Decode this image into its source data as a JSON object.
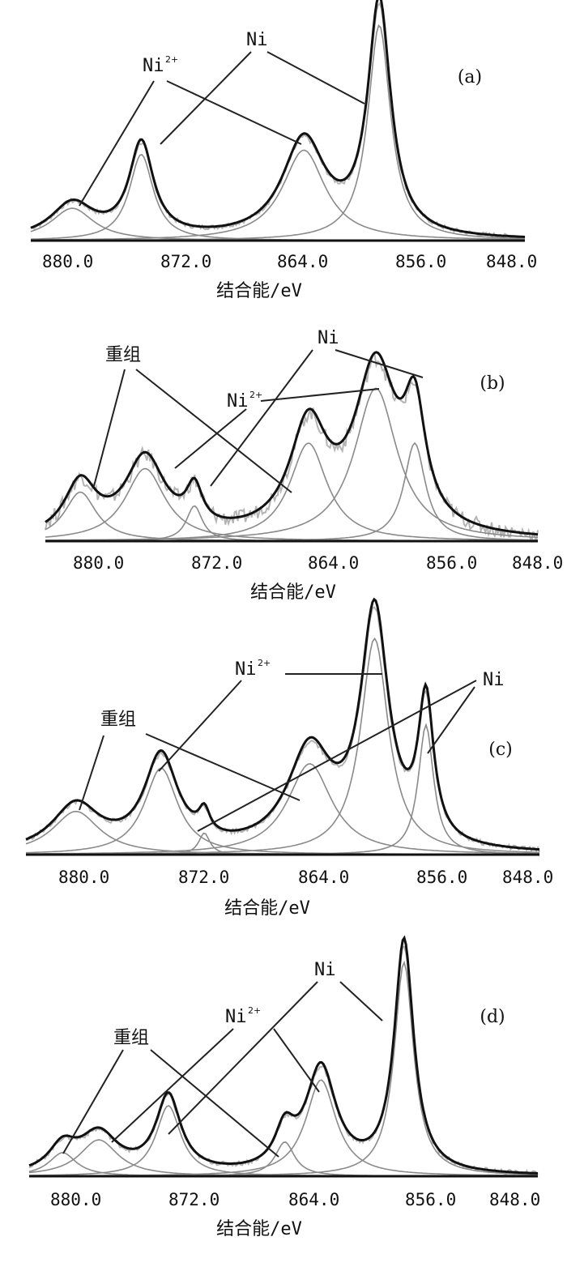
{
  "chart_data": [
    {
      "type": "line",
      "panel_label": "(a)",
      "xlabel": "结合能/eV",
      "ticks": [
        "880.0",
        "872.0",
        "864.0",
        "856.0",
        "848.0"
      ],
      "xlim": [
        882,
        844
      ],
      "peaks": [
        {
          "center": 878.8,
          "amplitude": 0.15,
          "width": 1.6
        },
        {
          "center": 873.5,
          "amplitude": 0.4,
          "width": 0.9
        },
        {
          "center": 861.0,
          "amplitude": 0.42,
          "width": 1.6
        },
        {
          "center": 855.2,
          "amplitude": 1.0,
          "width": 0.85
        }
      ],
      "annotations": [
        {
          "text": "Ni",
          "superscript": "2+"
        },
        {
          "text": "Ni",
          "superscript": ""
        }
      ]
    },
    {
      "type": "line",
      "panel_label": "(b)",
      "xlabel": "结合能/eV",
      "ticks": [
        "880.0",
        "872.0",
        "864.0",
        "856.0",
        "848.0"
      ],
      "xlim": [
        882,
        844
      ],
      "peaks": [
        {
          "center": 879.3,
          "amplitude": 0.25,
          "width": 1.2
        },
        {
          "center": 874.3,
          "amplitude": 0.37,
          "width": 1.5
        },
        {
          "center": 870.5,
          "amplitude": 0.18,
          "width": 0.6
        },
        {
          "center": 861.7,
          "amplitude": 0.5,
          "width": 1.4
        },
        {
          "center": 856.5,
          "amplitude": 0.78,
          "width": 1.6
        },
        {
          "center": 853.5,
          "amplitude": 0.5,
          "width": 0.8
        }
      ],
      "annotations": [
        {
          "text": "重组",
          "superscript": ""
        },
        {
          "text": "Ni",
          "superscript": "2+"
        },
        {
          "text": "Ni",
          "superscript": ""
        }
      ]
    },
    {
      "type": "line",
      "panel_label": "(c)",
      "xlabel": "结合能/eV",
      "ticks": [
        "880.0",
        "872.0",
        "864.0",
        "856.0",
        "848.0"
      ],
      "xlim": [
        882,
        844
      ],
      "peaks": [
        {
          "center": 878.3,
          "amplitude": 0.2,
          "width": 1.7
        },
        {
          "center": 872.0,
          "amplitude": 0.4,
          "width": 1.2
        },
        {
          "center": 868.8,
          "amplitude": 0.1,
          "width": 0.4
        },
        {
          "center": 861.0,
          "amplitude": 0.42,
          "width": 1.6
        },
        {
          "center": 856.2,
          "amplitude": 1.0,
          "width": 1.0
        },
        {
          "center": 852.4,
          "amplitude": 0.6,
          "width": 0.55
        }
      ],
      "annotations": [
        {
          "text": "重组",
          "superscript": ""
        },
        {
          "text": "Ni",
          "superscript": "2+"
        },
        {
          "text": "Ni",
          "superscript": ""
        }
      ]
    },
    {
      "type": "line",
      "panel_label": "(d)",
      "xlabel": "结合能/eV",
      "ticks": [
        "880.0",
        "872.0",
        "864.0",
        "856.0",
        "848.0"
      ],
      "xlim": [
        882,
        844
      ],
      "peaks": [
        {
          "center": 879.5,
          "amplitude": 0.11,
          "width": 1.0
        },
        {
          "center": 876.8,
          "amplitude": 0.17,
          "width": 1.4
        },
        {
          "center": 871.6,
          "amplitude": 0.33,
          "width": 0.9
        },
        {
          "center": 862.9,
          "amplitude": 0.16,
          "width": 0.7
        },
        {
          "center": 860.2,
          "amplitude": 0.45,
          "width": 1.1
        },
        {
          "center": 854.0,
          "amplitude": 1.0,
          "width": 0.7
        }
      ],
      "annotations": [
        {
          "text": "重组",
          "superscript": ""
        },
        {
          "text": "Ni",
          "superscript": "2+"
        },
        {
          "text": "Ni",
          "superscript": ""
        }
      ]
    }
  ]
}
